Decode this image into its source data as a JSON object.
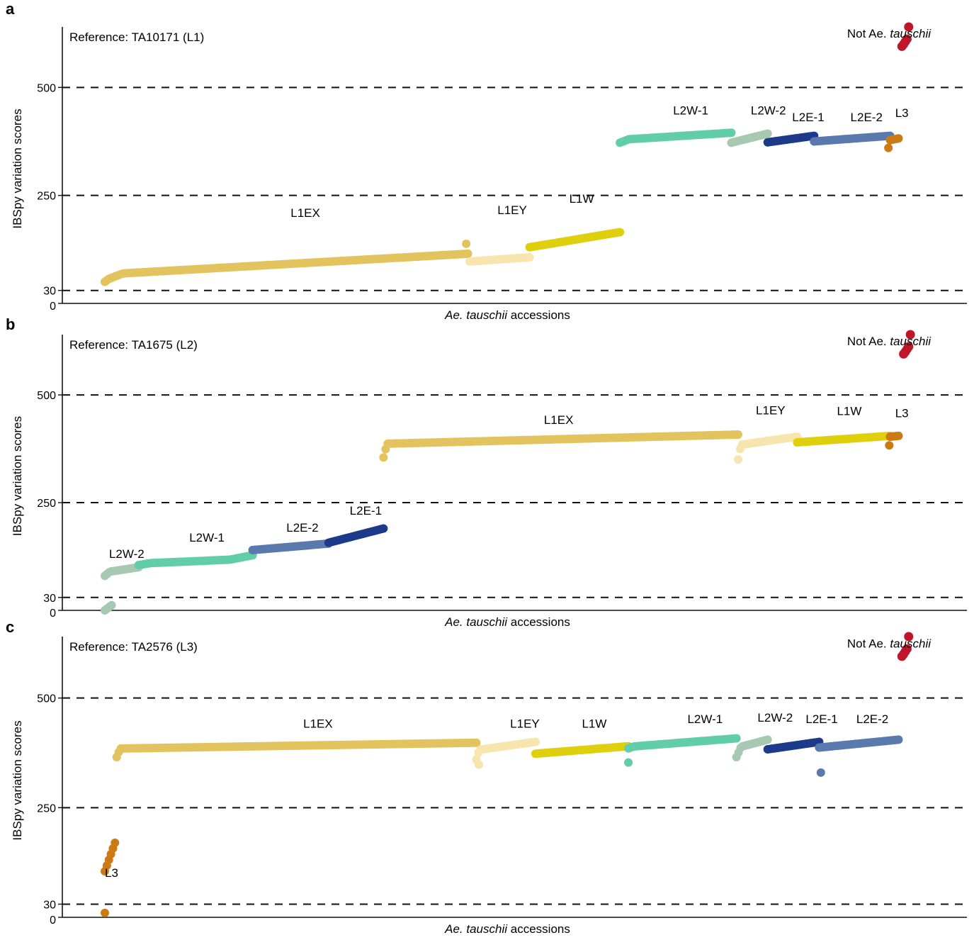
{
  "chart_data": [
    {
      "panel": "a",
      "type": "scatter",
      "reference": "Reference: TA10171 (L1)",
      "xlabel": "Ae. tauschii accessions",
      "xlabel_italic": "Ae. tauschii",
      "xlabel_rest": " accessions",
      "ylabel": "IBSpy variation scores",
      "yticks": [
        0,
        30,
        250,
        500
      ],
      "ylim": [
        0,
        640
      ],
      "dashed_lines": [
        30,
        250,
        500
      ],
      "outlier_label": "Not Ae. tauschii",
      "series": [
        {
          "name": "L1EX",
          "color": "#e3c35e",
          "x0": 0.0,
          "x1": 0.43,
          "y0": 50,
          "y1": 115,
          "lift": [
            [
              0.0,
              0.0
            ],
            [
              0.01,
              0.1
            ],
            [
              0.05,
              0.3
            ],
            [
              1.0,
              1.0
            ]
          ],
          "extra": [
            [
              0.428,
              138
            ]
          ]
        },
        {
          "name": "L1EY",
          "color": "#f7e5ad",
          "x0": 0.432,
          "x1": 0.503,
          "y0": 97,
          "y1": 107,
          "lift": [
            [
              0.0,
              0.0
            ],
            [
              1.0,
              1.0
            ]
          ]
        },
        {
          "name": "L1W",
          "color": "#dfcf0c",
          "x0": 0.503,
          "x1": 0.61,
          "y0": 130,
          "y1": 165,
          "lift": [
            [
              0.0,
              0.0
            ],
            [
              1.0,
              1.0
            ]
          ]
        },
        {
          "name": "L2W-1",
          "color": "#62cda9",
          "x0": 0.61,
          "x1": 0.742,
          "y0": 372,
          "y1": 395,
          "lift": [
            [
              0.0,
              0.0
            ],
            [
              0.08,
              0.35
            ],
            [
              1.0,
              1.0
            ]
          ]
        },
        {
          "name": "L2W-2",
          "color": "#a8c9b1",
          "x0": 0.742,
          "x1": 0.785,
          "y0": 372,
          "y1": 393,
          "lift": [
            [
              0.0,
              0.0
            ],
            [
              1.0,
              1.0
            ]
          ]
        },
        {
          "name": "L2E-1",
          "color": "#1d3a8a",
          "x0": 0.785,
          "x1": 0.84,
          "y0": 373,
          "y1": 388,
          "lift": [
            [
              0.0,
              0.0
            ],
            [
              1.0,
              1.0
            ]
          ]
        },
        {
          "name": "L2E-2",
          "color": "#5a79ad",
          "x0": 0.84,
          "x1": 0.93,
          "y0": 375,
          "y1": 388,
          "lift": [
            [
              0.0,
              0.0
            ],
            [
              1.0,
              1.0
            ]
          ]
        },
        {
          "name": "L3",
          "color": "#cc7a14",
          "x0": 0.93,
          "x1": 0.94,
          "y0": 378,
          "y1": 382,
          "lift": [
            [
              0.0,
              0.0
            ],
            [
              1.0,
              1.0
            ]
          ],
          "extra": [
            [
              0.928,
              360
            ]
          ]
        },
        {
          "name": "Not Ae. tauschii",
          "color": "#c0162a",
          "points": [
            [
              0.944,
              595
            ],
            [
              0.946,
              600
            ],
            [
              0.948,
              606
            ],
            [
              0.95,
              612
            ],
            [
              0.952,
              640
            ]
          ]
        }
      ],
      "labels": [
        {
          "text": "L1EX",
          "x": 0.22,
          "y": 200
        },
        {
          "text": "L1EY",
          "x": 0.465,
          "y": 207
        },
        {
          "text": "L1W",
          "x": 0.55,
          "y": 233
        },
        {
          "text": "L2W-1",
          "x": 0.673,
          "y": 437
        },
        {
          "text": "L2W-2",
          "x": 0.765,
          "y": 437
        },
        {
          "text": "L2E-1",
          "x": 0.814,
          "y": 422
        },
        {
          "text": "L2E-2",
          "x": 0.883,
          "y": 422
        },
        {
          "text": "L3",
          "x": 0.936,
          "y": 432
        }
      ]
    },
    {
      "panel": "b",
      "type": "scatter",
      "reference": "Reference: TA1675 (L2)",
      "xlabel": "Ae. tauschii accessions",
      "xlabel_italic": "Ae. tauschii",
      "xlabel_rest": " accessions",
      "ylabel": "IBSpy variation scores",
      "yticks": [
        0,
        30,
        250,
        500
      ],
      "ylim": [
        0,
        640
      ],
      "dashed_lines": [
        30,
        250,
        500
      ],
      "outlier_label": "Not Ae. tauschii",
      "series": [
        {
          "name": "L2W-2",
          "color": "#a8c9b1",
          "x0": 0.0,
          "x1": 0.04,
          "y0": 80,
          "y1": 100,
          "lift": [
            [
              0.0,
              0.0
            ],
            [
              0.15,
              0.5
            ],
            [
              1.0,
              1.0
            ]
          ],
          "extra": [
            [
              0.0,
              0
            ],
            [
              0.002,
              3
            ],
            [
              0.004,
              6
            ],
            [
              0.006,
              9
            ],
            [
              0.008,
              12
            ]
          ]
        },
        {
          "name": "L2W-1",
          "color": "#62cda9",
          "x0": 0.04,
          "x1": 0.175,
          "y0": 105,
          "y1": 128,
          "lift": [
            [
              0.0,
              0.0
            ],
            [
              0.1,
              0.2
            ],
            [
              0.8,
              0.55
            ],
            [
              1.0,
              1.0
            ]
          ]
        },
        {
          "name": "L2E-2",
          "color": "#5a79ad",
          "x0": 0.175,
          "x1": 0.265,
          "y0": 140,
          "y1": 155,
          "lift": [
            [
              0.0,
              0.0
            ],
            [
              1.0,
              1.0
            ]
          ]
        },
        {
          "name": "L2E-1",
          "color": "#1d3a8a",
          "x0": 0.265,
          "x1": 0.33,
          "y0": 157,
          "y1": 190,
          "lift": [
            [
              0.0,
              0.0
            ],
            [
              1.0,
              1.0
            ]
          ]
        },
        {
          "name": "L1EX",
          "color": "#e3c35e",
          "x0": 0.33,
          "x1": 0.75,
          "y0": 355,
          "y1": 408,
          "lift": [
            [
              0.0,
              0.0
            ],
            [
              0.01,
              0.6
            ],
            [
              1.0,
              1.0
            ]
          ]
        },
        {
          "name": "L1EY",
          "color": "#f7e5ad",
          "x0": 0.75,
          "x1": 0.82,
          "y0": 350,
          "y1": 403,
          "lift": [
            [
              0.0,
              0.0
            ],
            [
              0.05,
              0.65
            ],
            [
              1.0,
              1.0
            ]
          ]
        },
        {
          "name": "L1W",
          "color": "#dfcf0c",
          "x0": 0.82,
          "x1": 0.93,
          "y0": 390,
          "y1": 405,
          "lift": [
            [
              0.0,
              0.0
            ],
            [
              1.0,
              1.0
            ]
          ]
        },
        {
          "name": "L3",
          "color": "#cc7a14",
          "x0": 0.93,
          "x1": 0.94,
          "y0": 403,
          "y1": 405,
          "lift": [
            [
              0.0,
              0.0
            ],
            [
              1.0,
              1.0
            ]
          ],
          "extra": [
            [
              0.929,
              383
            ]
          ]
        },
        {
          "name": "Not Ae. tauschii",
          "color": "#c0162a",
          "points": [
            [
              0.946,
              595
            ],
            [
              0.948,
              600
            ],
            [
              0.95,
              606
            ],
            [
              0.952,
              612
            ],
            [
              0.954,
              640
            ]
          ]
        }
      ],
      "labels": [
        {
          "text": "L2W-2",
          "x": 0.005,
          "y": 122
        },
        {
          "text": "L2W-1",
          "x": 0.1,
          "y": 160
        },
        {
          "text": "L2E-2",
          "x": 0.215,
          "y": 183
        },
        {
          "text": "L2E-1",
          "x": 0.29,
          "y": 222
        },
        {
          "text": "L1EX",
          "x": 0.52,
          "y": 433
        },
        {
          "text": "L1EY",
          "x": 0.771,
          "y": 455
        },
        {
          "text": "L1W",
          "x": 0.867,
          "y": 453
        },
        {
          "text": "L3",
          "x": 0.936,
          "y": 448
        }
      ]
    },
    {
      "panel": "c",
      "type": "scatter",
      "reference": "Reference: TA2576 (L3)",
      "xlabel": "Ae. tauschii accessions",
      "xlabel_italic": "Ae. tauschii",
      "xlabel_rest": " accessions",
      "ylabel": "IBSpy variation scores",
      "yticks": [
        0,
        30,
        250,
        500
      ],
      "ylim": [
        0,
        640
      ],
      "dashed_lines": [
        30,
        250,
        500
      ],
      "outlier_label": "Not Ae. tauschii",
      "series": [
        {
          "name": "L3",
          "color": "#cc7a14",
          "x0": 0.0,
          "x1": 0.012,
          "y0": 105,
          "y1": 170,
          "lift": [
            [
              0.0,
              0.0
            ],
            [
              1.0,
              1.0
            ]
          ],
          "extra": [
            [
              0.0,
              10
            ]
          ]
        },
        {
          "name": "L1EX",
          "color": "#e3c35e",
          "x0": 0.014,
          "x1": 0.44,
          "y0": 365,
          "y1": 398,
          "lift": [
            [
              0.0,
              0.0
            ],
            [
              0.01,
              0.6
            ],
            [
              1.0,
              1.0
            ]
          ]
        },
        {
          "name": "L1EY",
          "color": "#f7e5ad",
          "x0": 0.44,
          "x1": 0.51,
          "y0": 360,
          "y1": 400,
          "lift": [
            [
              0.0,
              0.0
            ],
            [
              0.05,
              0.55
            ],
            [
              1.0,
              1.0
            ]
          ],
          "extra": [
            [
              0.443,
              348
            ]
          ]
        },
        {
          "name": "L1W",
          "color": "#dfcf0c",
          "x0": 0.51,
          "x1": 0.62,
          "y0": 373,
          "y1": 390,
          "lift": [
            [
              0.0,
              0.0
            ],
            [
              1.0,
              1.0
            ]
          ]
        },
        {
          "name": "L2W-1",
          "color": "#62cda9",
          "x0": 0.62,
          "x1": 0.748,
          "y0": 385,
          "y1": 408,
          "lift": [
            [
              0.0,
              0.0
            ],
            [
              0.05,
              0.2
            ],
            [
              1.0,
              1.0
            ]
          ],
          "extra": [
            [
              0.62,
              353
            ]
          ]
        },
        {
          "name": "L2W-2",
          "color": "#a8c9b1",
          "x0": 0.748,
          "x1": 0.785,
          "y0": 365,
          "y1": 405,
          "lift": [
            [
              0.0,
              0.0
            ],
            [
              0.15,
              0.6
            ],
            [
              1.0,
              1.0
            ]
          ]
        },
        {
          "name": "L2E-1",
          "color": "#1d3a8a",
          "x0": 0.785,
          "x1": 0.846,
          "y0": 383,
          "y1": 400,
          "lift": [
            [
              0.0,
              0.0
            ],
            [
              1.0,
              1.0
            ]
          ]
        },
        {
          "name": "L2E-2",
          "color": "#5a79ad",
          "x0": 0.846,
          "x1": 0.94,
          "y0": 387,
          "y1": 405,
          "lift": [
            [
              0.0,
              0.0
            ],
            [
              1.0,
              1.0
            ]
          ],
          "extra": [
            [
              0.848,
              330
            ]
          ]
        },
        {
          "name": "Not Ae. tauschii",
          "color": "#c0162a",
          "points": [
            [
              0.944,
              595
            ],
            [
              0.946,
              600
            ],
            [
              0.948,
              606
            ],
            [
              0.95,
              612
            ],
            [
              0.952,
              640
            ]
          ]
        }
      ],
      "labels": [
        {
          "text": "L3",
          "x": 0.0,
          "y": 92
        },
        {
          "text": "L1EX",
          "x": 0.235,
          "y": 432
        },
        {
          "text": "L1EY",
          "x": 0.48,
          "y": 432
        },
        {
          "text": "L1W",
          "x": 0.565,
          "y": 432
        },
        {
          "text": "L2W-1",
          "x": 0.69,
          "y": 443
        },
        {
          "text": "L2W-2",
          "x": 0.773,
          "y": 446
        },
        {
          "text": "L2E-1",
          "x": 0.83,
          "y": 443
        },
        {
          "text": "L2E-2",
          "x": 0.89,
          "y": 443
        }
      ]
    }
  ]
}
